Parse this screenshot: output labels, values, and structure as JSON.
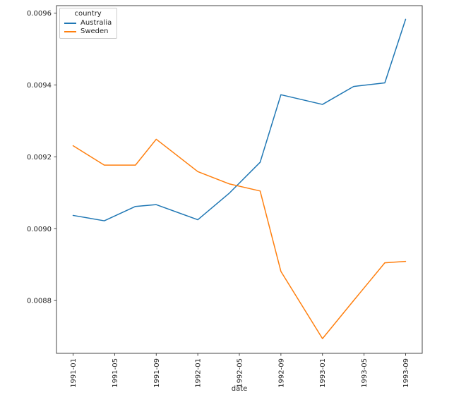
{
  "figure": {
    "background": "#ffffff",
    "plot_area_note": "single axes, no title, no grid"
  },
  "chart_data": {
    "type": "line",
    "title": "",
    "xlabel": "date",
    "ylabel": "",
    "grid": false,
    "legend": {
      "title": "country",
      "position": "upper left",
      "entries": [
        "Australia",
        "Sweden"
      ]
    },
    "x": [
      "1991-01",
      "1991-04",
      "1991-07",
      "1991-09",
      "1992-01",
      "1992-04",
      "1992-07",
      "1992-09",
      "1993-01",
      "1993-04",
      "1993-07",
      "1993-09"
    ],
    "x_month_index": [
      0,
      3,
      6,
      8,
      12,
      15,
      18,
      20,
      24,
      27,
      30,
      32
    ],
    "series": [
      {
        "name": "Australia",
        "color": "#1f77b4",
        "values": [
          0.009037,
          0.009022,
          0.009062,
          0.009067,
          0.009025,
          0.009098,
          0.009185,
          0.009373,
          0.009346,
          0.009396,
          0.009406,
          0.009583
        ]
      },
      {
        "name": "Sweden",
        "color": "#ff7f0e",
        "values": [
          0.009231,
          0.009177,
          0.009177,
          0.009249,
          0.009159,
          0.009125,
          0.009105,
          0.008881,
          0.008694,
          0.0088,
          0.008905,
          0.008909
        ]
      }
    ],
    "x_ticks": {
      "month_index": [
        0,
        4,
        8,
        12,
        16,
        20,
        24,
        28,
        32
      ],
      "labels": [
        "1991-01",
        "1991-05",
        "1991-09",
        "1992-01",
        "1992-05",
        "1992-09",
        "1993-01",
        "1993-05",
        "1993-09"
      ],
      "rotation_deg": 90
    },
    "y_ticks": {
      "values": [
        0.0088,
        0.009,
        0.0092,
        0.0094,
        0.0096
      ],
      "labels": [
        "0.0088",
        "0.0090",
        "0.0092",
        "0.0094",
        "0.0096"
      ]
    },
    "xlim_month_index": [
      -1.6,
      33.6
    ],
    "ylim": [
      0.008653,
      0.009621
    ],
    "axis_color": "#333333",
    "tick_label_color": "#262626",
    "line_width": 1.5
  }
}
